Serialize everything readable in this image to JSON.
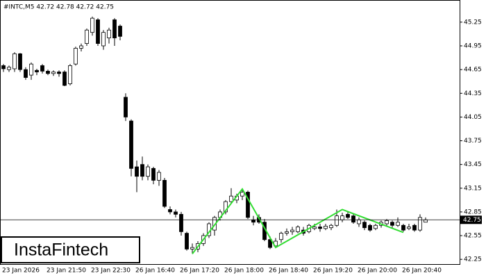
{
  "chart_data": {
    "type": "candlestick",
    "title": "#INTC,M5  42.72 42.78 42.72 42.75",
    "logo": "InstaFintech",
    "categories": [
      "23 Jan 2026",
      null,
      null,
      null,
      null,
      null,
      null,
      null,
      "23 Jan 21:50",
      null,
      null,
      null,
      null,
      null,
      null,
      null,
      "23 Jan 22:30",
      null,
      null,
      null,
      null,
      null,
      null,
      null,
      "26 Jan 16:40",
      null,
      null,
      null,
      null,
      null,
      null,
      null,
      "26 Jan 17:20",
      null,
      null,
      null,
      null,
      null,
      null,
      null,
      "26 Jan 18:00",
      null,
      null,
      null,
      null,
      null,
      null,
      null,
      "26 Jan 18:40",
      null,
      null,
      null,
      null,
      null,
      null,
      null,
      "26 Jan 19:20",
      null,
      null,
      null,
      null,
      null,
      null,
      null,
      "26 Jan 20:00",
      null,
      null,
      null,
      null,
      null,
      null,
      null,
      "26 Jan 20:40",
      null,
      null,
      null,
      null
    ],
    "open": [
      44.7,
      44.65,
      44.66,
      44.85,
      44.65,
      44.58,
      44.64,
      44.7,
      44.63,
      44.6,
      44.62,
      44.62,
      44.47,
      44.72,
      44.92,
      44.98,
      45.12,
      45.28,
      44.95,
      45.05,
      45.28,
      45.2,
      44.3,
      44.0,
      43.42,
      43.45,
      43.3,
      43.4,
      43.25,
      43.25,
      42.88,
      42.85,
      42.82,
      42.58,
      42.38,
      42.38,
      42.45,
      42.55,
      42.62,
      42.78,
      42.85,
      42.98,
      43.0,
      43.05,
      43.1,
      42.75,
      42.78,
      42.72,
      42.5,
      42.42,
      42.5,
      42.58,
      42.6,
      42.6,
      42.62,
      42.6,
      42.64,
      42.66,
      42.64,
      42.65,
      42.68,
      42.75,
      42.82,
      42.8,
      42.7,
      42.72,
      42.68,
      42.64,
      42.68,
      42.7,
      42.72,
      42.68,
      42.68,
      42.64,
      42.68,
      42.62,
      42.72
    ],
    "high": [
      44.72,
      44.7,
      44.87,
      44.86,
      44.68,
      44.74,
      44.66,
      44.72,
      44.65,
      44.64,
      44.64,
      44.64,
      44.72,
      44.94,
      44.98,
      45.17,
      45.32,
      45.3,
      45.15,
      45.18,
      45.3,
      45.22,
      44.35,
      44.02,
      43.5,
      43.55,
      43.45,
      43.42,
      43.38,
      43.28,
      42.92,
      42.88,
      42.85,
      42.6,
      42.45,
      42.48,
      42.58,
      42.72,
      42.8,
      42.88,
      43.0,
      43.15,
      43.08,
      43.14,
      43.12,
      42.8,
      42.82,
      42.76,
      42.54,
      42.52,
      42.6,
      42.64,
      42.66,
      42.68,
      42.66,
      42.7,
      42.7,
      42.7,
      42.7,
      42.7,
      42.88,
      42.84,
      42.86,
      42.82,
      42.78,
      42.74,
      42.7,
      42.7,
      42.74,
      42.76,
      42.74,
      42.78,
      42.7,
      42.7,
      42.7,
      42.82,
      42.78
    ],
    "low": [
      44.62,
      44.62,
      44.62,
      44.62,
      44.52,
      44.52,
      44.58,
      44.6,
      44.58,
      44.57,
      44.56,
      44.44,
      44.45,
      44.7,
      44.88,
      44.95,
      45.08,
      44.95,
      44.9,
      44.98,
      44.95,
      45.02,
      44.0,
      43.3,
      43.1,
      43.25,
      43.25,
      43.2,
      43.18,
      42.9,
      42.82,
      42.78,
      42.55,
      42.36,
      42.32,
      42.34,
      42.42,
      42.52,
      42.55,
      42.74,
      42.82,
      42.95,
      42.96,
      43.0,
      42.76,
      42.68,
      42.7,
      42.48,
      42.38,
      42.4,
      42.46,
      42.55,
      42.56,
      42.58,
      42.55,
      42.58,
      42.62,
      42.6,
      42.62,
      42.62,
      42.66,
      42.72,
      42.76,
      42.7,
      42.66,
      42.62,
      42.6,
      42.62,
      42.65,
      42.66,
      42.65,
      42.66,
      42.6,
      42.62,
      42.6,
      42.6,
      42.72
    ],
    "close": [
      44.66,
      44.68,
      44.85,
      44.65,
      44.55,
      44.72,
      44.62,
      44.63,
      44.6,
      44.62,
      44.6,
      44.45,
      44.7,
      44.92,
      44.95,
      45.15,
      45.3,
      44.98,
      45.12,
      45.15,
      45.05,
      45.07,
      44.05,
      43.4,
      43.3,
      43.3,
      43.42,
      43.25,
      43.35,
      42.92,
      42.85,
      42.82,
      42.6,
      42.38,
      42.4,
      42.45,
      42.55,
      42.7,
      42.78,
      42.85,
      42.98,
      43.05,
      43.05,
      43.1,
      42.78,
      42.72,
      42.72,
      42.5,
      42.4,
      42.48,
      42.58,
      42.6,
      42.62,
      42.66,
      42.58,
      42.68,
      42.66,
      42.64,
      42.67,
      42.68,
      42.8,
      42.8,
      42.78,
      42.72,
      42.75,
      42.65,
      42.62,
      42.68,
      42.72,
      42.74,
      42.68,
      42.72,
      42.62,
      42.66,
      42.62,
      42.78,
      42.75
    ],
    "current_price": 42.75,
    "pattern_line": {
      "color": "#33dd33",
      "x": [
        34,
        43,
        49,
        61,
        72
      ],
      "y": [
        42.32,
        43.14,
        42.4,
        42.88,
        42.59
      ]
    },
    "ylim": [
      42.19,
      45.53
    ],
    "yticks": [
      42.25,
      42.55,
      42.85,
      43.15,
      43.45,
      43.75,
      44.05,
      44.35,
      44.65,
      44.95,
      45.25
    ]
  }
}
